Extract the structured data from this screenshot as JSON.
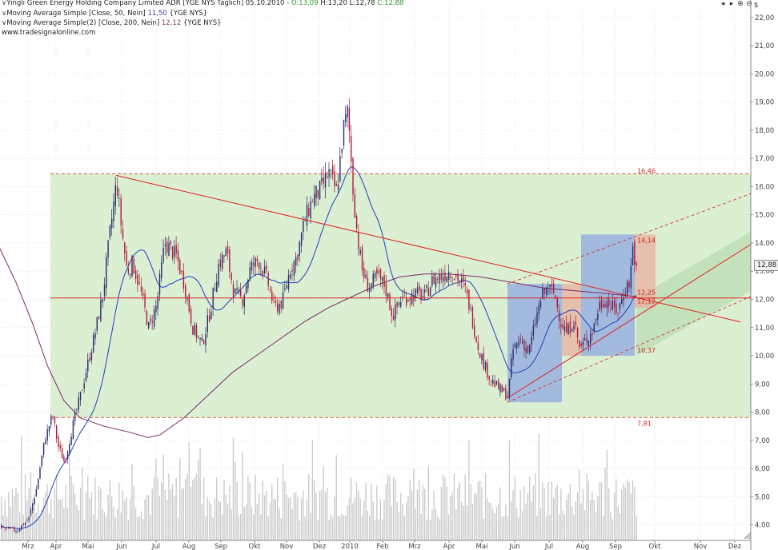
{
  "header": {
    "instrument": "Yingli Green Energy Holding Company Limited ADR [YGE NYS  Täglich] 05.10.2010 -",
    "open": "O:13,09",
    "high": "H:13,20",
    "low": "L:12,78",
    "close": "C:12,88",
    "ma1_label": "Moving Average Simple [Close, 50, Nein]",
    "ma1_value": "11,50",
    "ma1_symbol": "{YGE NYS}",
    "ma2_label": "Moving Average Simple(2) [Close, 200, Nein]",
    "ma2_value": "12,12",
    "ma2_symbol": "{YGE NYS}",
    "source": "www.tradesignalonline.com"
  },
  "window_buttons": [
    "◂",
    "▸",
    "⊕",
    "⊖"
  ],
  "price_tag": "12,88",
  "chart_data": {
    "type": "candlestick",
    "x_labels": [
      "Mrz",
      "Apr",
      "Mai",
      "Jun",
      "Jul",
      "Aug",
      "Sep",
      "Okt",
      "Nov",
      "Dez",
      "2010",
      "Feb",
      "Mrz",
      "Apr",
      "Mai",
      "Jun",
      "Jul",
      "Aug",
      "Sep",
      "Okt",
      "Nov",
      "Dez"
    ],
    "y_axis_unit": "$",
    "y_ticks": [
      "4,00",
      "5,00",
      "6,00",
      "7,00",
      "8,00",
      "9,00",
      "10,00",
      "11,00",
      "12,00",
      "13,00",
      "14,00",
      "15,00",
      "16,00",
      "17,00",
      "18,00",
      "19,00",
      "20,00",
      "21,00",
      "22,00"
    ],
    "ylim": [
      3.45,
      22.45
    ],
    "annotations": {
      "upper_level": "16,46",
      "lower_level": "7,81",
      "box_high": "14,14",
      "box_low": "10,37",
      "level_a": "12,25",
      "level_b": "12,12"
    },
    "last_close": 12.88,
    "colors": {
      "up_candle": "#2b2b6b",
      "down_candle": "#b0193a",
      "ma50": "#2040c0",
      "ma200": "#7a2a6a",
      "trendline": "#e02020",
      "green_zone": "#cfe9c3",
      "blue_box": "#8fa8e0",
      "red_box": "#e8b0a0",
      "volume": "#c8c8c8"
    }
  }
}
